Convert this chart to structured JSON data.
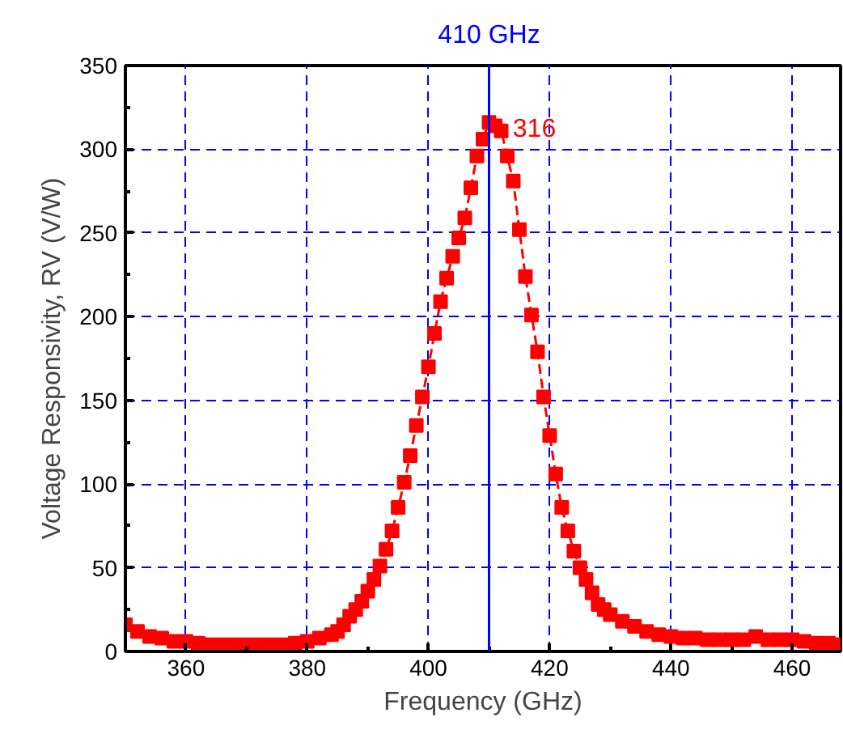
{
  "chart_data": {
    "type": "line",
    "xlabel": "Frequency (GHz)",
    "ylabel": "Voltage Responsivity, RV (V/W)",
    "xlim": [
      350,
      468
    ],
    "ylim": [
      0,
      350
    ],
    "xticks": [
      360,
      380,
      400,
      420,
      440,
      460
    ],
    "yticks": [
      0,
      50,
      100,
      150,
      200,
      250,
      300,
      350
    ],
    "grid": true,
    "marker": "square",
    "line_style": "dashed",
    "series": [
      {
        "color": "#ff0000",
        "x": [
          350,
          352,
          354,
          356,
          358,
          360,
          362,
          364,
          366,
          368,
          370,
          372,
          374,
          376,
          378,
          380,
          382,
          384,
          385,
          386,
          387,
          388,
          389,
          390,
          391,
          392,
          393,
          394,
          395,
          396,
          397,
          398,
          399,
          400,
          401,
          402,
          403,
          404,
          405,
          406,
          407,
          408,
          409,
          410,
          411,
          412,
          413,
          414,
          415,
          416,
          417,
          418,
          419,
          420,
          421,
          422,
          423,
          424,
          425,
          426,
          427,
          428,
          429,
          430,
          432,
          434,
          436,
          438,
          440,
          442,
          444,
          446,
          448,
          450,
          452,
          454,
          456,
          458,
          460,
          462,
          464,
          466,
          468
        ],
        "values": [
          16,
          12,
          9,
          8,
          6,
          6,
          5,
          4,
          4,
          4,
          4,
          4,
          4,
          4,
          5,
          6,
          8,
          10,
          12,
          16,
          21,
          25,
          30,
          36,
          43,
          51,
          61,
          72,
          86,
          101,
          117,
          135,
          152,
          170,
          190,
          209,
          223,
          236,
          247,
          259,
          277,
          296,
          306,
          316,
          314,
          311,
          296,
          281,
          252,
          224,
          201,
          179,
          152,
          129,
          106,
          86,
          72,
          60,
          50,
          43,
          35,
          28,
          25,
          22,
          18,
          15,
          12,
          10,
          9,
          8,
          8,
          7,
          7,
          7,
          7,
          9,
          7,
          7,
          7,
          6,
          5,
          5,
          4
        ]
      }
    ],
    "ref_lines": [
      {
        "axis": "x",
        "value": 410,
        "label": "410 GHz",
        "color": "#0000ff",
        "line_style": "solid"
      }
    ],
    "annotations": [
      {
        "text": "316",
        "x": 410,
        "y": 316
      }
    ]
  }
}
